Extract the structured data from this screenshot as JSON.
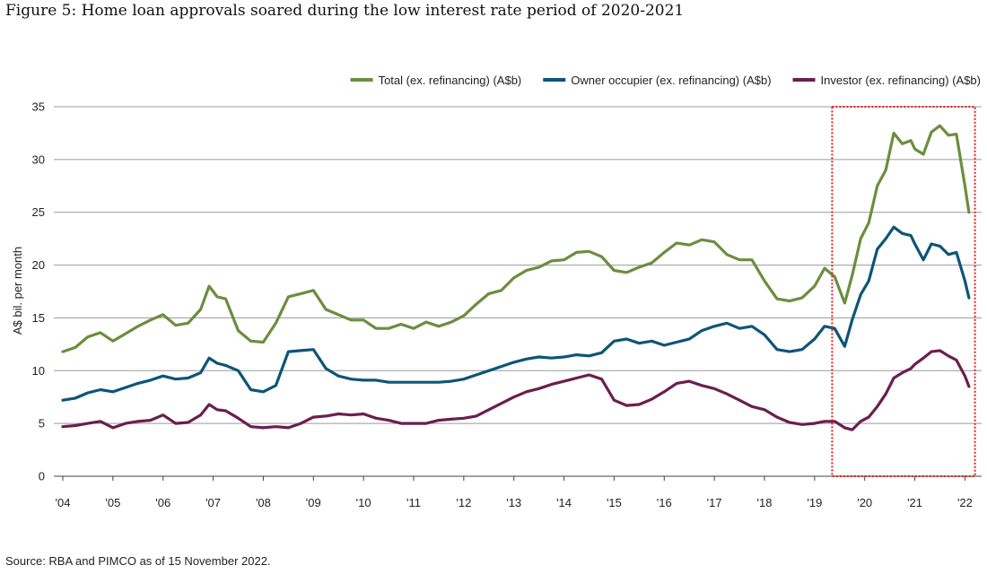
{
  "title": "Figure 5: Home loan approvals soared during the low interest rate period of 2020-2021",
  "source": "Source: RBA and PIMCO as of 15 November 2022.",
  "colors": {
    "total": "#6b8e3e",
    "owner": "#0d5577",
    "investor": "#6a1f4e",
    "highlight": "#e02020",
    "grid": "#9a9a9a"
  },
  "chart_data": {
    "type": "line",
    "title": "Figure 5: Home loan approvals soared during the low interest rate period of 2020-2021",
    "xlabel": "",
    "ylabel": "A$ bil. per month",
    "ylim": [
      0,
      35
    ],
    "yticks": [
      0,
      5,
      10,
      15,
      20,
      25,
      30,
      35
    ],
    "xlim": [
      2004,
      2022.1
    ],
    "xticks": [
      {
        "value": 2004,
        "label": "'04"
      },
      {
        "value": 2005,
        "label": "'05"
      },
      {
        "value": 2006,
        "label": "'06"
      },
      {
        "value": 2007,
        "label": "'07"
      },
      {
        "value": 2008,
        "label": "'08"
      },
      {
        "value": 2009,
        "label": "'09"
      },
      {
        "value": 2010,
        "label": "'10"
      },
      {
        "value": 2011,
        "label": "'11"
      },
      {
        "value": 2012,
        "label": "'12"
      },
      {
        "value": 2013,
        "label": "'13"
      },
      {
        "value": 2014,
        "label": "'14"
      },
      {
        "value": 2015,
        "label": "'15"
      },
      {
        "value": 2016,
        "label": "'16"
      },
      {
        "value": 2017,
        "label": "'17"
      },
      {
        "value": 2018,
        "label": "'18"
      },
      {
        "value": 2019,
        "label": "'19"
      },
      {
        "value": 2020,
        "label": "'20"
      },
      {
        "value": 2021,
        "label": "'21"
      },
      {
        "value": 2022,
        "label": "'22"
      }
    ],
    "grid": "horizontal",
    "legend_position": "top-right",
    "highlight_region": {
      "x_start": 2019.35,
      "x_end": 2022.2,
      "style": "dotted red box"
    },
    "series": [
      {
        "name": "Total (ex. refinancing) (A$b)",
        "key": "total",
        "x": [
          2004.0,
          2004.25,
          2004.5,
          2004.75,
          2005.0,
          2005.25,
          2005.5,
          2005.75,
          2006.0,
          2006.25,
          2006.5,
          2006.75,
          2006.92,
          2007.08,
          2007.25,
          2007.5,
          2007.75,
          2008.0,
          2008.25,
          2008.5,
          2008.75,
          2009.0,
          2009.25,
          2009.5,
          2009.75,
          2010.0,
          2010.25,
          2010.5,
          2010.75,
          2011.0,
          2011.25,
          2011.5,
          2011.75,
          2012.0,
          2012.25,
          2012.5,
          2012.75,
          2013.0,
          2013.25,
          2013.5,
          2013.75,
          2014.0,
          2014.25,
          2014.5,
          2014.75,
          2015.0,
          2015.25,
          2015.5,
          2015.75,
          2016.0,
          2016.25,
          2016.5,
          2016.75,
          2017.0,
          2017.25,
          2017.5,
          2017.75,
          2018.0,
          2018.25,
          2018.5,
          2018.75,
          2019.0,
          2019.2,
          2019.4,
          2019.6,
          2019.75,
          2019.92,
          2020.08,
          2020.25,
          2020.42,
          2020.58,
          2020.75,
          2020.92,
          2021.0,
          2021.17,
          2021.33,
          2021.5,
          2021.67,
          2021.83,
          2022.0,
          2022.08
        ],
        "values": [
          11.8,
          12.2,
          13.2,
          13.6,
          12.8,
          13.5,
          14.2,
          14.8,
          15.3,
          14.3,
          14.5,
          15.8,
          18.0,
          17.0,
          16.8,
          13.8,
          12.8,
          12.7,
          14.5,
          17.0,
          17.3,
          17.6,
          15.8,
          15.3,
          14.8,
          14.8,
          14.0,
          14.0,
          14.4,
          14.0,
          14.6,
          14.2,
          14.6,
          15.2,
          16.3,
          17.3,
          17.6,
          18.8,
          19.5,
          19.8,
          20.4,
          20.5,
          21.2,
          21.3,
          20.8,
          19.5,
          19.3,
          19.8,
          20.2,
          21.2,
          22.1,
          21.9,
          22.4,
          22.2,
          21.0,
          20.5,
          20.5,
          18.5,
          16.8,
          16.6,
          16.9,
          18.0,
          19.7,
          18.9,
          16.4,
          19.0,
          22.5,
          24.0,
          27.5,
          29.0,
          32.5,
          31.5,
          31.8,
          31.0,
          30.5,
          32.6,
          33.2,
          32.3,
          32.4,
          27.5,
          25.0
        ]
      },
      {
        "name": "Owner occupier (ex. refinancing) (A$b)",
        "key": "owner",
        "x": [
          2004.0,
          2004.25,
          2004.5,
          2004.75,
          2005.0,
          2005.25,
          2005.5,
          2005.75,
          2006.0,
          2006.25,
          2006.5,
          2006.75,
          2006.92,
          2007.08,
          2007.25,
          2007.5,
          2007.75,
          2008.0,
          2008.25,
          2008.5,
          2008.75,
          2009.0,
          2009.25,
          2009.5,
          2009.75,
          2010.0,
          2010.25,
          2010.5,
          2010.75,
          2011.0,
          2011.25,
          2011.5,
          2011.75,
          2012.0,
          2012.25,
          2012.5,
          2012.75,
          2013.0,
          2013.25,
          2013.5,
          2013.75,
          2014.0,
          2014.25,
          2014.5,
          2014.75,
          2015.0,
          2015.25,
          2015.5,
          2015.75,
          2016.0,
          2016.25,
          2016.5,
          2016.75,
          2017.0,
          2017.25,
          2017.5,
          2017.75,
          2018.0,
          2018.25,
          2018.5,
          2018.75,
          2019.0,
          2019.2,
          2019.4,
          2019.6,
          2019.75,
          2019.92,
          2020.08,
          2020.25,
          2020.42,
          2020.58,
          2020.75,
          2020.92,
          2021.0,
          2021.17,
          2021.33,
          2021.5,
          2021.67,
          2021.83,
          2022.0,
          2022.08
        ],
        "values": [
          7.2,
          7.4,
          7.9,
          8.2,
          8.0,
          8.4,
          8.8,
          9.1,
          9.5,
          9.2,
          9.3,
          9.8,
          11.2,
          10.7,
          10.5,
          10.0,
          8.2,
          8.0,
          8.6,
          11.8,
          11.9,
          12.0,
          10.2,
          9.5,
          9.2,
          9.1,
          9.1,
          8.9,
          8.9,
          8.9,
          8.9,
          8.9,
          9.0,
          9.2,
          9.6,
          10.0,
          10.4,
          10.8,
          11.1,
          11.3,
          11.2,
          11.3,
          11.5,
          11.4,
          11.7,
          12.8,
          13.0,
          12.6,
          12.8,
          12.4,
          12.7,
          13.0,
          13.8,
          14.2,
          14.5,
          14.0,
          14.2,
          13.4,
          12.0,
          11.8,
          12.0,
          13.0,
          14.2,
          14.0,
          12.3,
          14.8,
          17.2,
          18.5,
          21.5,
          22.5,
          23.6,
          23.0,
          22.8,
          22.0,
          20.5,
          22.0,
          21.8,
          21.0,
          21.2,
          18.5,
          16.9
        ]
      },
      {
        "name": "Investor (ex. refinancing) (A$b)",
        "key": "investor",
        "x": [
          2004.0,
          2004.25,
          2004.5,
          2004.75,
          2005.0,
          2005.25,
          2005.5,
          2005.75,
          2006.0,
          2006.25,
          2006.5,
          2006.75,
          2006.92,
          2007.08,
          2007.25,
          2007.5,
          2007.75,
          2008.0,
          2008.25,
          2008.5,
          2008.75,
          2009.0,
          2009.25,
          2009.5,
          2009.75,
          2010.0,
          2010.25,
          2010.5,
          2010.75,
          2011.0,
          2011.25,
          2011.5,
          2011.75,
          2012.0,
          2012.25,
          2012.5,
          2012.75,
          2013.0,
          2013.25,
          2013.5,
          2013.75,
          2014.0,
          2014.25,
          2014.5,
          2014.75,
          2015.0,
          2015.25,
          2015.5,
          2015.75,
          2016.0,
          2016.25,
          2016.5,
          2016.75,
          2017.0,
          2017.25,
          2017.5,
          2017.75,
          2018.0,
          2018.25,
          2018.5,
          2018.75,
          2019.0,
          2019.2,
          2019.4,
          2019.6,
          2019.75,
          2019.92,
          2020.08,
          2020.25,
          2020.42,
          2020.58,
          2020.75,
          2020.92,
          2021.0,
          2021.17,
          2021.33,
          2021.5,
          2021.67,
          2021.83,
          2022.0,
          2022.08
        ],
        "values": [
          4.7,
          4.8,
          5.0,
          5.2,
          4.6,
          5.0,
          5.2,
          5.3,
          5.8,
          5.0,
          5.1,
          5.8,
          6.8,
          6.3,
          6.2,
          5.5,
          4.7,
          4.6,
          4.7,
          4.6,
          5.0,
          5.6,
          5.7,
          5.9,
          5.8,
          5.9,
          5.5,
          5.3,
          5.0,
          5.0,
          5.0,
          5.3,
          5.4,
          5.5,
          5.7,
          6.3,
          6.9,
          7.5,
          8.0,
          8.3,
          8.7,
          9.0,
          9.3,
          9.6,
          9.2,
          7.2,
          6.7,
          6.8,
          7.3,
          8.0,
          8.8,
          9.0,
          8.6,
          8.3,
          7.8,
          7.2,
          6.6,
          6.3,
          5.6,
          5.1,
          4.9,
          5.0,
          5.2,
          5.2,
          4.6,
          4.4,
          5.2,
          5.6,
          6.6,
          7.8,
          9.3,
          9.8,
          10.2,
          10.6,
          11.2,
          11.8,
          11.9,
          11.4,
          11.0,
          9.5,
          8.5
        ]
      }
    ]
  }
}
